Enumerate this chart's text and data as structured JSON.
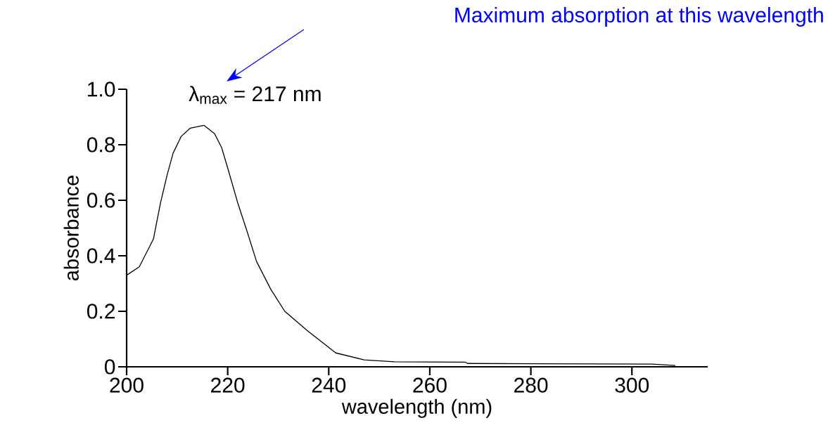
{
  "chart_data": {
    "type": "line",
    "xlabel": "wavelength (nm)",
    "ylabel": "absorbance",
    "annotations": [
      "Maximum absorption at this wavelength",
      "λ$_{max}$ = 217 nm"
    ],
    "x": [
      200,
      202.5,
      205.3,
      206.7,
      208,
      209.2,
      210.8,
      212.6,
      215.3,
      217.4,
      218.8,
      220.1,
      222,
      223.8,
      225.7,
      228.5,
      231.3,
      235.8,
      241.4,
      247,
      253,
      267,
      267.5,
      304,
      308.6
    ],
    "values": [
      0.33,
      0.36,
      0.46,
      0.59,
      0.69,
      0.77,
      0.83,
      0.86,
      0.87,
      0.84,
      0.79,
      0.71,
      0.59,
      0.49,
      0.38,
      0.28,
      0.2,
      0.13,
      0.05,
      0.025,
      0.018,
      0.017,
      0.012,
      0.01,
      0.005
    ],
    "color": "#000000",
    "xlim": [
      200,
      315
    ],
    "xticks": [
      200,
      220,
      240,
      260,
      280,
      300
    ],
    "ylim": [
      0,
      1
    ],
    "yticks": [
      0,
      0.2,
      0.4,
      0.6,
      0.8,
      {
        "value": 1,
        "label": "1.0"
      }
    ]
  }
}
